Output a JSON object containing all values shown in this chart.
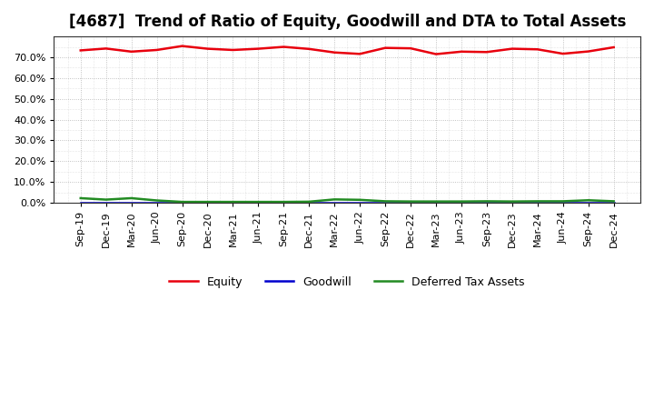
{
  "title": "[4687]  Trend of Ratio of Equity, Goodwill and DTA to Total Assets",
  "x_labels": [
    "Sep-19",
    "Dec-19",
    "Mar-20",
    "Jun-20",
    "Sep-20",
    "Dec-20",
    "Mar-21",
    "Jun-21",
    "Sep-21",
    "Dec-21",
    "Mar-22",
    "Jun-22",
    "Sep-22",
    "Dec-22",
    "Mar-23",
    "Jun-23",
    "Sep-23",
    "Dec-23",
    "Mar-24",
    "Jun-24",
    "Sep-24",
    "Dec-24"
  ],
  "equity": [
    0.733,
    0.742,
    0.727,
    0.735,
    0.754,
    0.741,
    0.735,
    0.741,
    0.75,
    0.74,
    0.723,
    0.716,
    0.745,
    0.743,
    0.715,
    0.727,
    0.725,
    0.741,
    0.738,
    0.717,
    0.728,
    0.748
  ],
  "goodwill": [
    0.0,
    0.0,
    0.0,
    0.0,
    0.0,
    0.0,
    0.0,
    0.0,
    0.0,
    0.0,
    0.0,
    0.0,
    0.0,
    0.0,
    0.0,
    0.0,
    0.0,
    0.0,
    0.0,
    0.0,
    0.0,
    0.0
  ],
  "dta": [
    0.022,
    0.015,
    0.022,
    0.011,
    0.004,
    0.004,
    0.004,
    0.004,
    0.004,
    0.005,
    0.016,
    0.014,
    0.007,
    0.006,
    0.006,
    0.006,
    0.007,
    0.006,
    0.007,
    0.007,
    0.012,
    0.007
  ],
  "equity_color": "#e8000d",
  "goodwill_color": "#0000cd",
  "dta_color": "#228b22",
  "bg_color": "#ffffff",
  "plot_bg_color": "#ffffff",
  "grid_color": "#aaaaaa",
  "ylim": [
    0.0,
    0.8
  ],
  "yticks": [
    0.0,
    0.1,
    0.2,
    0.3,
    0.4,
    0.5,
    0.6,
    0.7
  ],
  "title_fontsize": 12,
  "axis_fontsize": 8,
  "legend_fontsize": 9
}
